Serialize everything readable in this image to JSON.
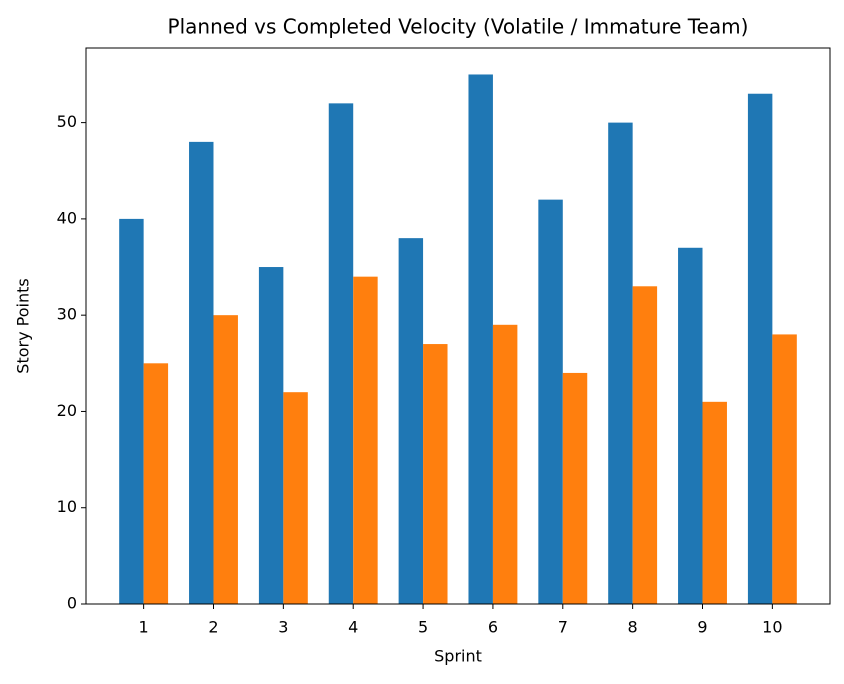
{
  "chart_data": {
    "type": "bar",
    "title": "Planned vs Completed Velocity (Volatile / Immature Team)",
    "x_label": "Sprint",
    "y_label": "Story Points",
    "categories": [
      "1",
      "2",
      "3",
      "4",
      "5",
      "6",
      "7",
      "8",
      "9",
      "10"
    ],
    "series": [
      {
        "color": "#1f77b4",
        "values": [
          40,
          48,
          35,
          52,
          38,
          55,
          42,
          50,
          37,
          53
        ]
      },
      {
        "color": "#ff7f0e",
        "values": [
          25,
          30,
          22,
          34,
          27,
          29,
          24,
          33,
          21,
          28
        ]
      }
    ],
    "ylim": [
      0,
      57.75
    ],
    "yticks": [
      0,
      10,
      20,
      30,
      40,
      50
    ],
    "grid": false
  }
}
